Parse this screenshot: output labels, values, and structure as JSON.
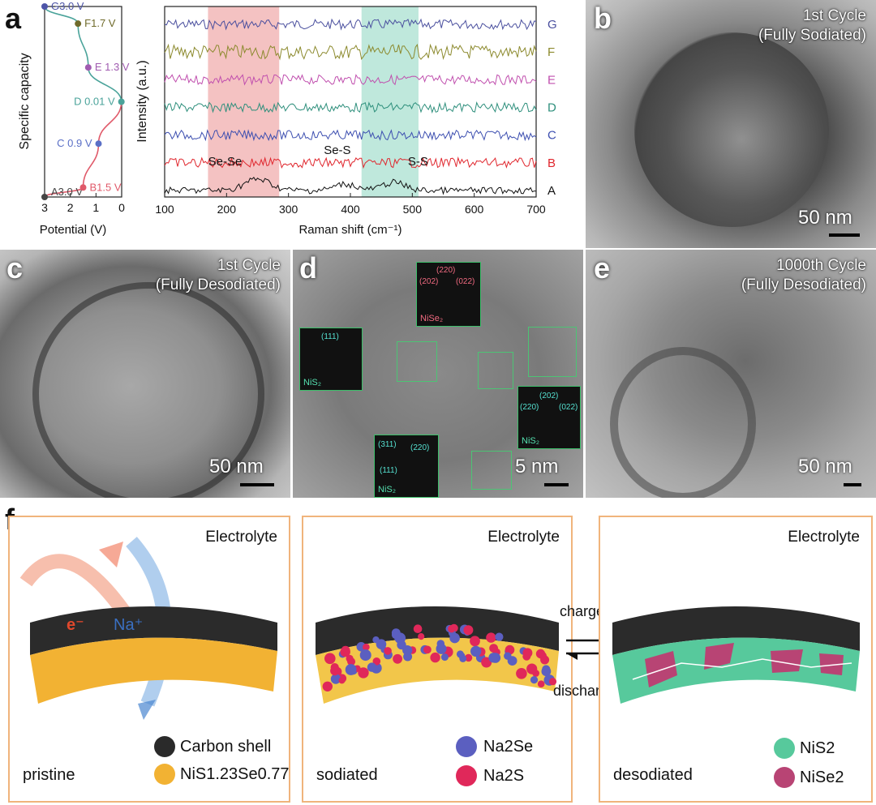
{
  "panel_labels": {
    "a": "a",
    "b": "b",
    "c": "c",
    "d": "d",
    "e": "e",
    "f": "f"
  },
  "chart_data": [
    {
      "type": "line",
      "xlabel": "Potential (V)",
      "ylabel": "Specific capacity",
      "xlim": [
        3,
        0
      ],
      "x_ticks": [
        "3",
        "2",
        "1",
        "0"
      ],
      "points": [
        {
          "label": "A3.0 V",
          "x": 3.0,
          "y": 0.0,
          "color": "#444444"
        },
        {
          "label": "B1.5 V",
          "x": 1.5,
          "y": 0.05,
          "color": "#e05a6a"
        },
        {
          "label": "C 0.9 V",
          "x": 0.9,
          "y": 0.28,
          "color": "#5a6fc6"
        },
        {
          "label": "D 0.01 V",
          "x": 0.01,
          "y": 0.5,
          "color": "#4aa39a"
        },
        {
          "label": "E 1.3 V",
          "x": 1.3,
          "y": 0.68,
          "color": "#a05bb0"
        },
        {
          "label": "F1.7 V",
          "x": 1.7,
          "y": 0.91,
          "color": "#6f6a2a"
        },
        {
          "label": "G3.0 V",
          "x": 3.0,
          "y": 1.0,
          "color": "#4d55a8"
        }
      ],
      "discharge_color": "#e05a6a",
      "charge_color": "#4aa39a"
    },
    {
      "type": "line",
      "xlabel": "Raman shift (cm⁻¹)",
      "ylabel": "Intensity (a.u.)",
      "xlim": [
        100,
        700
      ],
      "x_ticks": [
        "100",
        "200",
        "300",
        "400",
        "500",
        "600",
        "700"
      ],
      "highlight_regions": [
        {
          "from": 170,
          "to": 285,
          "color": "#f4c2c2"
        },
        {
          "from": 418,
          "to": 510,
          "color": "#bfe8dc"
        }
      ],
      "series": [
        {
          "name": "G",
          "color": "#4a4f9e"
        },
        {
          "name": "F",
          "color": "#8c8a2e"
        },
        {
          "name": "E",
          "color": "#c04fae"
        },
        {
          "name": "D",
          "color": "#2e8f7c"
        },
        {
          "name": "C",
          "color": "#3d4fb0"
        },
        {
          "name": "B",
          "color": "#e0262d"
        },
        {
          "name": "A",
          "color": "#111111"
        }
      ],
      "annotations": [
        {
          "text": "Se-Se",
          "x": 250
        },
        {
          "text": "Se-S",
          "x": 392
        },
        {
          "text": "S-S",
          "x": 470
        }
      ]
    }
  ],
  "panel_b": {
    "caption_line1": "1st Cycle",
    "caption_line2": "(Fully Sodiated)",
    "scale": "50 nm"
  },
  "panel_c": {
    "caption_line1": "1st Cycle",
    "caption_line2": "(Fully Desodiated)",
    "scale": "50 nm"
  },
  "panel_d": {
    "scale": "5 nm",
    "insets": [
      {
        "phase": "NiSe₂",
        "labels": [
          "(220)",
          "(202)",
          "(022)"
        ]
      },
      {
        "phase": "NiS₂",
        "labels": [
          "(111)"
        ]
      },
      {
        "phase": "NiS₂",
        "labels": [
          "(202)",
          "(220)",
          "(022)"
        ]
      },
      {
        "phase": "NiS₂",
        "labels": [
          "(311)",
          "(220)",
          "(111)"
        ]
      }
    ]
  },
  "panel_e": {
    "caption_line1": "1000th Cycle",
    "caption_line2": "(Fully Desodiated)",
    "scale": "50 nm"
  },
  "panel_f": {
    "electrolyte": "Electrolyte",
    "electron": "e⁻",
    "sodium": "Na⁺",
    "charge": "charge",
    "discharge": "discharge",
    "states": [
      "pristine",
      "sodiated",
      "desodiated"
    ],
    "legend": {
      "carbon": "Carbon shell",
      "nisse": "NiS1.23Se0.77",
      "na2se": "Na2Se",
      "na2s": "Na2S",
      "nis2": "NiS2",
      "nise2": "NiSe2"
    },
    "colors": {
      "carbon": "#2a2a2a",
      "nisse": "#f2b233",
      "na2se": "#5b5fc0",
      "na2s": "#e0285a",
      "nis2": "#57c99c",
      "nise2": "#b84474"
    }
  }
}
